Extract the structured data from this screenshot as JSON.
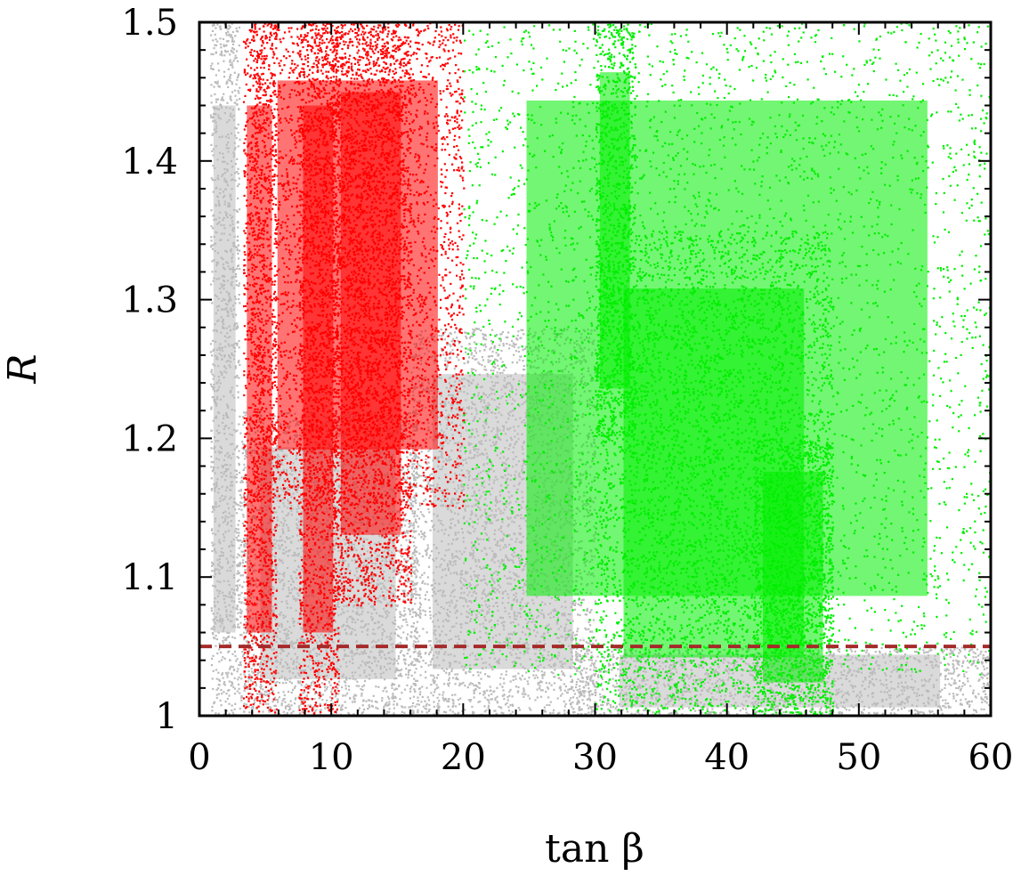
{
  "chart_data": {
    "type": "scatter",
    "xlabel": "tan β",
    "ylabel": "R",
    "xlim": [
      0,
      60
    ],
    "ylim": [
      1.0,
      1.5
    ],
    "xticks": [
      0,
      10,
      20,
      30,
      40,
      50,
      60
    ],
    "xtick_labels": [
      "0",
      "10",
      "20",
      "30",
      "40",
      "50",
      "60"
    ],
    "yticks": [
      1.0,
      1.1,
      1.2,
      1.3,
      1.4,
      1.5
    ],
    "ytick_labels": [
      "1",
      "1.1",
      "1.2",
      "1.3",
      "1.4",
      "1.5"
    ],
    "grid": false,
    "legend": "none",
    "reference_line": {
      "y": 1.05,
      "style": "dashed",
      "color": "#a52a2a"
    },
    "series": [
      {
        "color": "#bbbbbb",
        "regions": [
          {
            "x": [
              0.8,
              3.0
            ],
            "y": [
              1.0,
              1.5
            ]
          },
          {
            "x": [
              3.0,
              16.5
            ],
            "y": [
              1.0,
              1.22
            ]
          },
          {
            "x": [
              16.0,
              30.0
            ],
            "y": [
              1.0,
              1.28
            ]
          },
          {
            "x": [
              28.0,
              60.0
            ],
            "y": [
              1.0,
              1.05
            ]
          }
        ]
      },
      {
        "color": "#ff0000",
        "regions": [
          {
            "x": [
              3.3,
              5.8
            ],
            "y": [
              1.0,
              1.5
            ]
          },
          {
            "x": [
              7.5,
              10.5
            ],
            "y": [
              1.0,
              1.5
            ]
          },
          {
            "x": [
              4.0,
              20.0
            ],
            "y": [
              1.15,
              1.5
            ]
          },
          {
            "x": [
              10.0,
              16.0
            ],
            "y": [
              1.08,
              1.5
            ]
          }
        ]
      },
      {
        "color": "#00ee00",
        "regions": [
          {
            "x": [
              20.0,
              60.0
            ],
            "y": [
              1.03,
              1.5
            ]
          },
          {
            "x": [
              30.0,
              33.0
            ],
            "y": [
              1.2,
              1.5
            ]
          },
          {
            "x": [
              30.0,
              48.0
            ],
            "y": [
              1.0,
              1.35
            ]
          },
          {
            "x": [
              42.0,
              48.0
            ],
            "y": [
              1.0,
              1.2
            ]
          }
        ]
      }
    ]
  }
}
